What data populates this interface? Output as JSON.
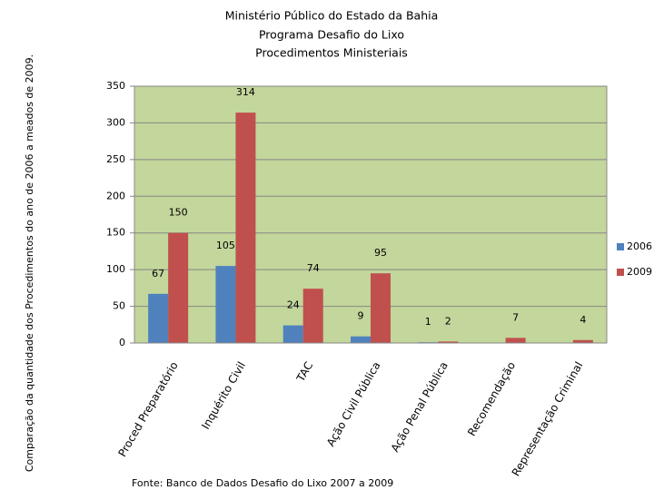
{
  "chart_data": {
    "type": "bar",
    "title": [
      "Ministério Público do Estado da Bahia",
      "Programa Desafio do Lixo",
      "Procedimentos Ministeriais"
    ],
    "y_label": "Comparação da quantidade dos Procedimentos do ano de 2006 a  meados de 2009.",
    "source": "Fonte: Banco de Dados Desafio do Lixo  2007 a 2009",
    "categories": [
      "Proced Preparatório",
      "Inquérito Civil",
      "TAC",
      "Ação Civil Pública",
      "Ação Penal Pública",
      "Recomendação",
      "Representação Criminal"
    ],
    "series": [
      {
        "name": "2006",
        "color": "#4f81bd",
        "values": [
          67,
          105,
          24,
          9,
          1,
          null,
          null
        ]
      },
      {
        "name": "2009",
        "color": "#c0504d",
        "values": [
          150,
          314,
          74,
          95,
          2,
          7,
          4
        ]
      }
    ],
    "ylim": [
      0,
      350
    ],
    "yticks": [
      0,
      50,
      100,
      150,
      200,
      250,
      300,
      350
    ],
    "grid": true,
    "plot_background": "#c3d69b",
    "legend": "right"
  }
}
